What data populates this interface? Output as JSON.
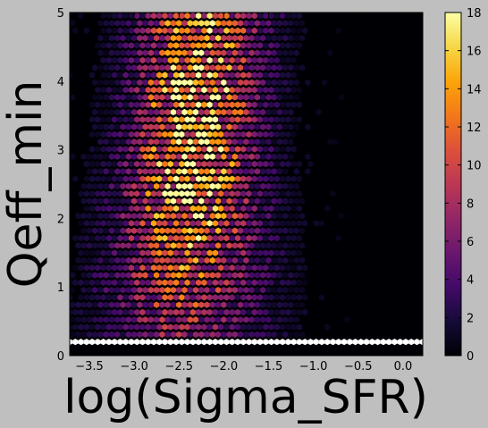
{
  "chart_data": {
    "type": "hexbin",
    "xlabel": "log(Sigma_SFR)",
    "ylabel": "Qeff_min",
    "xlim": [
      -3.72,
      0.22
    ],
    "ylim": [
      0,
      5
    ],
    "xticks": [
      -3.5,
      -3.0,
      -2.5,
      -2.0,
      -1.5,
      -1.0,
      -0.5,
      0.0
    ],
    "xtick_labels": [
      "−3.5",
      "−3.0",
      "−2.5",
      "−2.0",
      "−1.5",
      "−1.0",
      "−0.5",
      "0.0"
    ],
    "yticks": [
      0,
      1,
      2,
      3,
      4,
      5
    ],
    "ytick_labels": [
      "0",
      "1",
      "2",
      "3",
      "4",
      "5"
    ],
    "colorbar": {
      "colormap": "inferno",
      "range": [
        0,
        18
      ],
      "ticks": [
        0,
        2,
        4,
        6,
        8,
        10,
        12,
        14,
        16,
        18
      ],
      "tick_labels": [
        "0",
        "2",
        "4",
        "6",
        "8",
        "10",
        "12",
        "14",
        "16",
        "18"
      ]
    },
    "density_peak": {
      "x": -2.35,
      "y": 3.6,
      "max_count": 18
    },
    "saturated_row": {
      "y": 0.2,
      "note_color": "#ffffff"
    },
    "grid": false
  }
}
